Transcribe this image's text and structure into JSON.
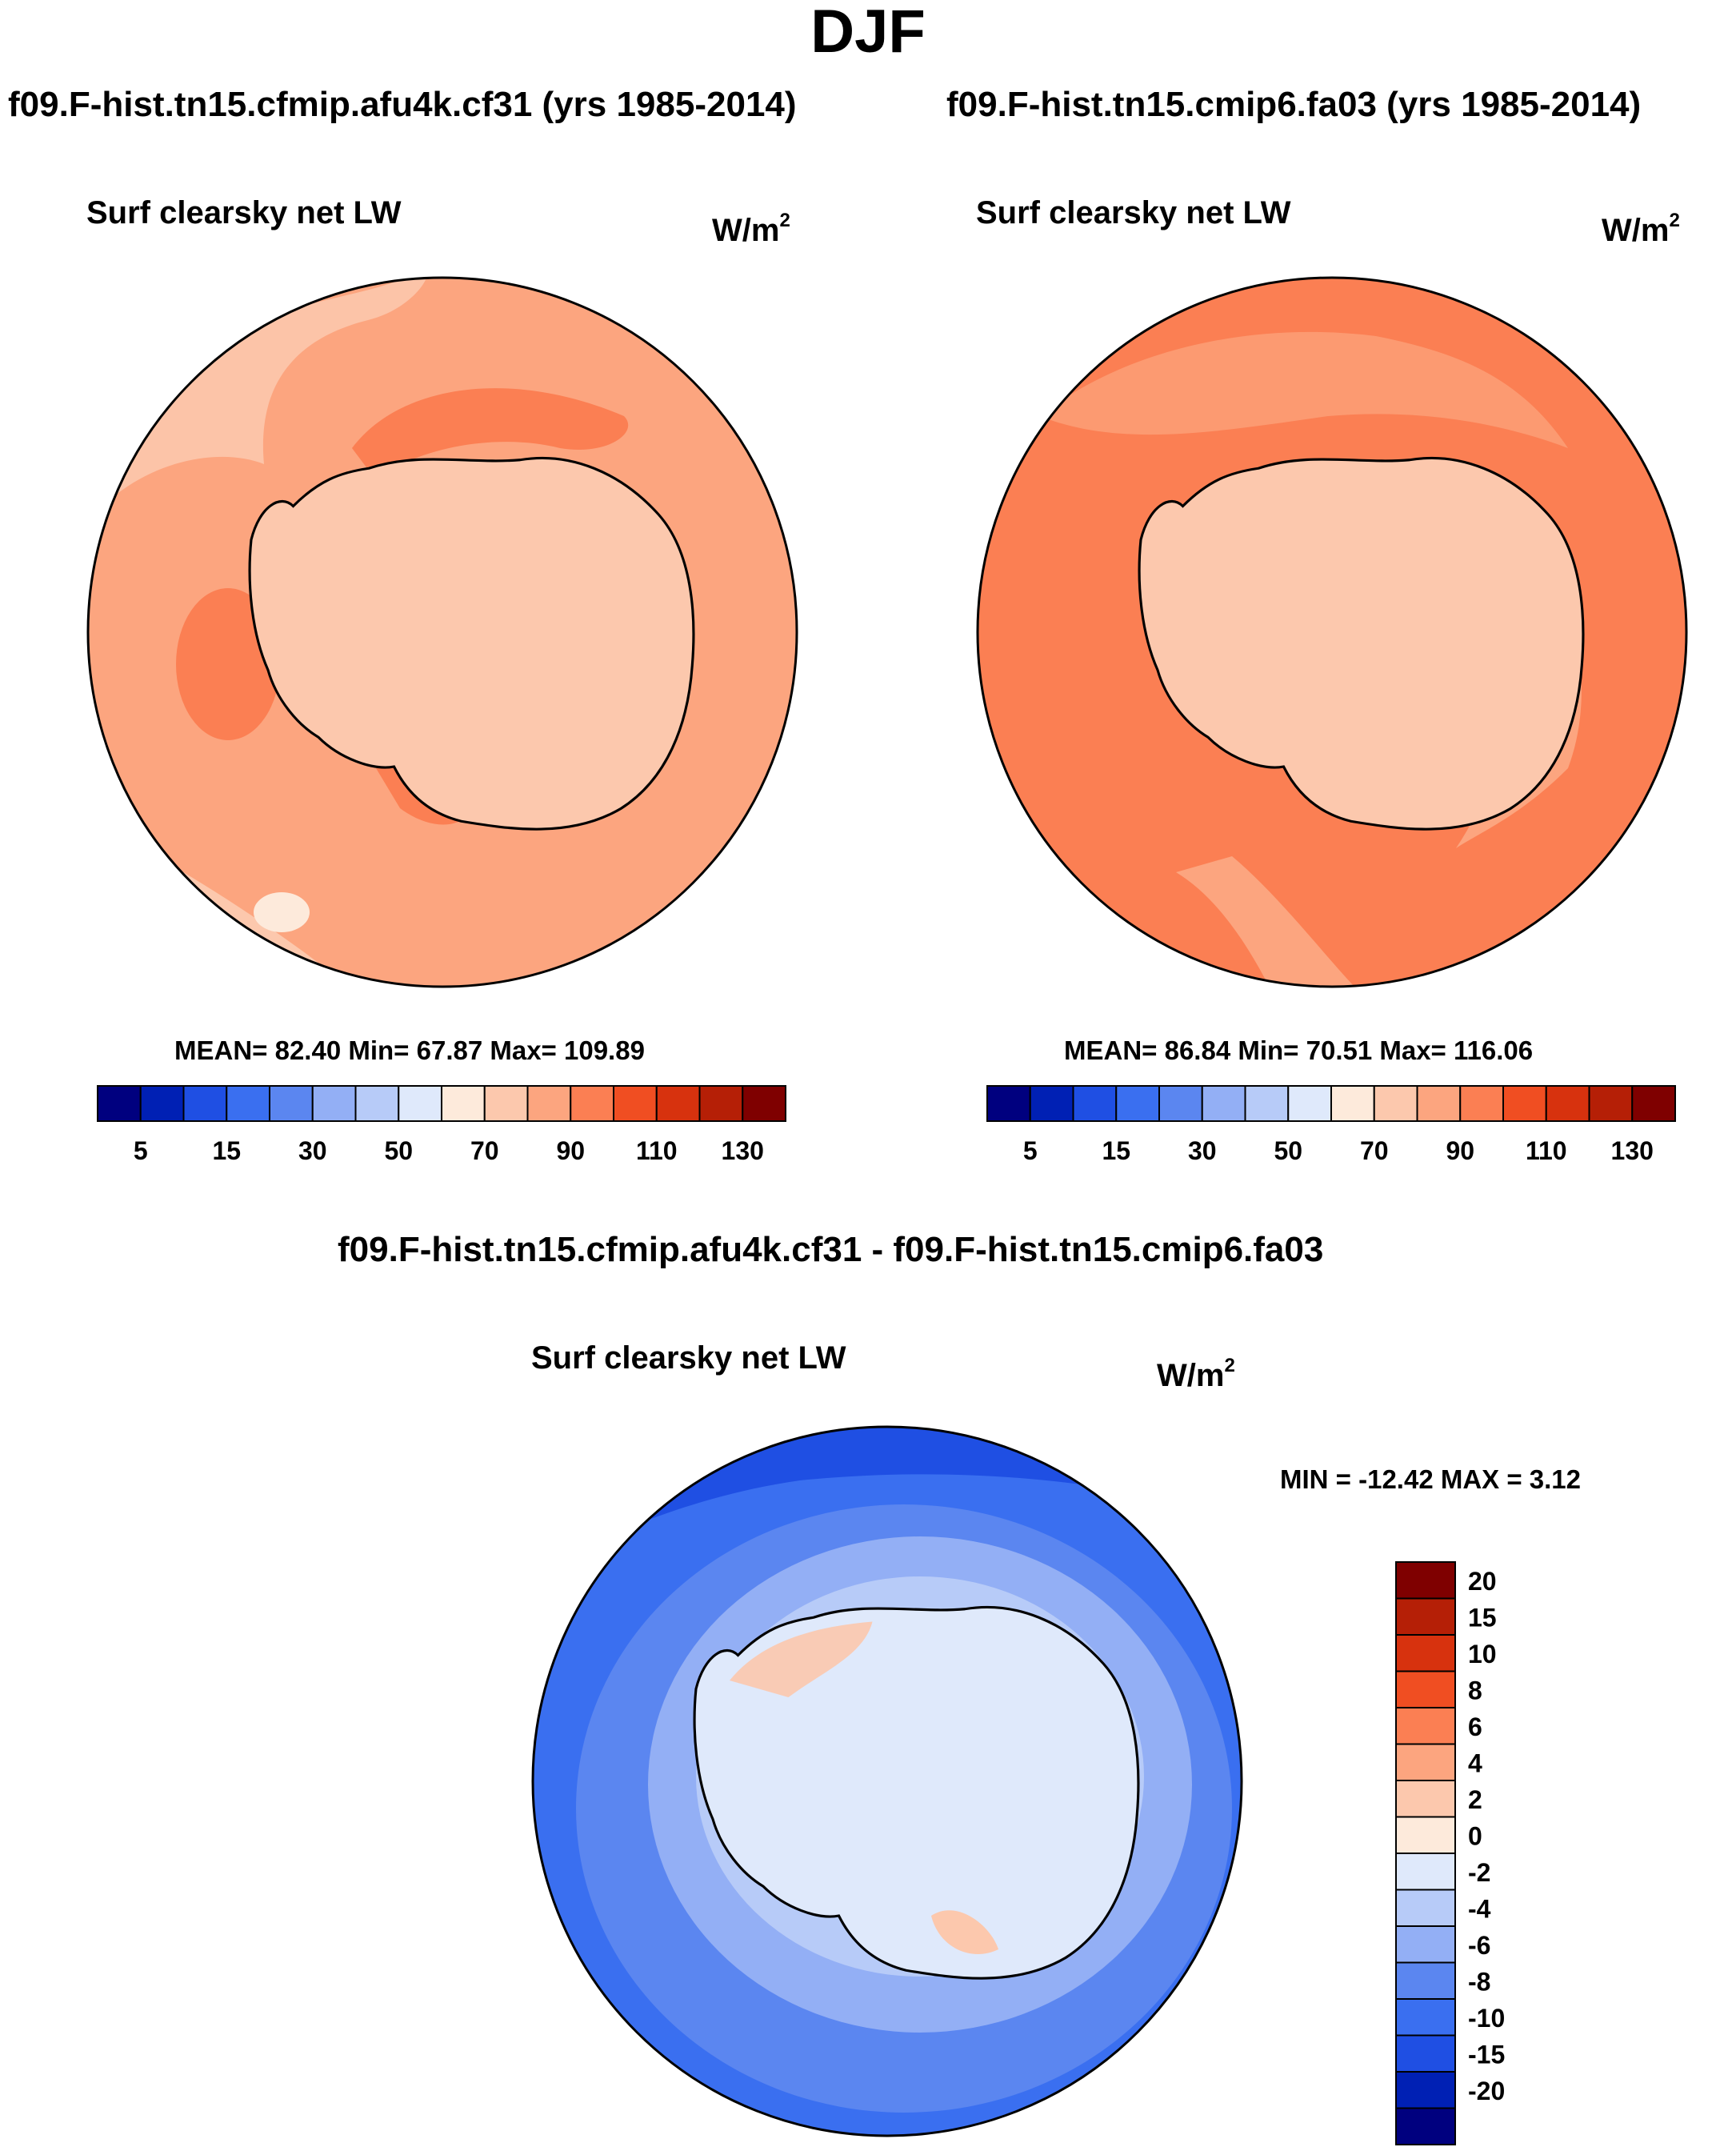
{
  "main_title": "DJF",
  "panels": [
    {
      "run_title": "f09.F-hist.tn15.cfmip.afu4k.cf31 (yrs 1985-2014)",
      "variable": "Surf clearsky net LW",
      "units_base": "W/m",
      "units_exp": "2",
      "stats": "MEAN=  82.40  Min=  67.87  Max= 109.89"
    },
    {
      "run_title": "f09.F-hist.tn15.cmip6.fa03 (yrs 1985-2014)",
      "variable": "Surf clearsky net LW",
      "units_base": "W/m",
      "units_exp": "2",
      "stats": "MEAN=  86.84  Min=  70.51  Max= 116.06"
    }
  ],
  "diff": {
    "title": "f09.F-hist.tn15.cfmip.afu4k.cf31 - f09.F-hist.tn15.cmip6.fa03",
    "variable": "Surf clearsky net LW",
    "units_base": "W/m",
    "units_exp": "2",
    "stats": "MIN = -12.42 MAX =   3.12"
  },
  "chart_data": [
    {
      "type": "heatmap",
      "projection": "south-polar-stereographic",
      "title": "Surf clearsky net LW",
      "units": "W/m2",
      "mean": 82.4,
      "min": 67.87,
      "max": 109.89,
      "colorbar": {
        "tick_labels": [
          "5",
          "15",
          "30",
          "50",
          "70",
          "90",
          "110",
          "130"
        ],
        "colors": [
          "#00007f",
          "#0020b4",
          "#1f4fe3",
          "#3a6ff0",
          "#5b86f0",
          "#93aff5",
          "#b7cbf8",
          "#dfe9fb",
          "#fdeadb",
          "#fcc8ad",
          "#fca57f",
          "#fb7f53",
          "#f04e22",
          "#d7320e",
          "#b51f06",
          "#7f0000"
        ]
      }
    },
    {
      "type": "heatmap",
      "projection": "south-polar-stereographic",
      "title": "Surf clearsky net LW",
      "units": "W/m2",
      "mean": 86.84,
      "min": 70.51,
      "max": 116.06,
      "colorbar": {
        "tick_labels": [
          "5",
          "15",
          "30",
          "50",
          "70",
          "90",
          "110",
          "130"
        ],
        "colors": [
          "#00007f",
          "#0020b4",
          "#1f4fe3",
          "#3a6ff0",
          "#5b86f0",
          "#93aff5",
          "#b7cbf8",
          "#dfe9fb",
          "#fdeadb",
          "#fcc8ad",
          "#fca57f",
          "#fb7f53",
          "#f04e22",
          "#d7320e",
          "#b51f06",
          "#7f0000"
        ]
      }
    },
    {
      "type": "heatmap",
      "projection": "south-polar-stereographic",
      "title": "Surf clearsky net LW",
      "units": "W/m2",
      "min": -12.42,
      "max": 3.12,
      "colorbar": {
        "orientation": "vertical",
        "tick_labels": [
          "20",
          "15",
          "10",
          "8",
          "6",
          "4",
          "2",
          "0",
          "-2",
          "-4",
          "-6",
          "-8",
          "-10",
          "-15",
          "-20"
        ],
        "colors": [
          "#7f0000",
          "#b51f06",
          "#d7320e",
          "#f04e22",
          "#fb7f53",
          "#fca57f",
          "#fcc8ad",
          "#fdeadb",
          "#dfe9fb",
          "#b7cbf8",
          "#93aff5",
          "#5b86f0",
          "#3a6ff0",
          "#1f4fe3",
          "#0020b4",
          "#00007f"
        ]
      }
    }
  ]
}
